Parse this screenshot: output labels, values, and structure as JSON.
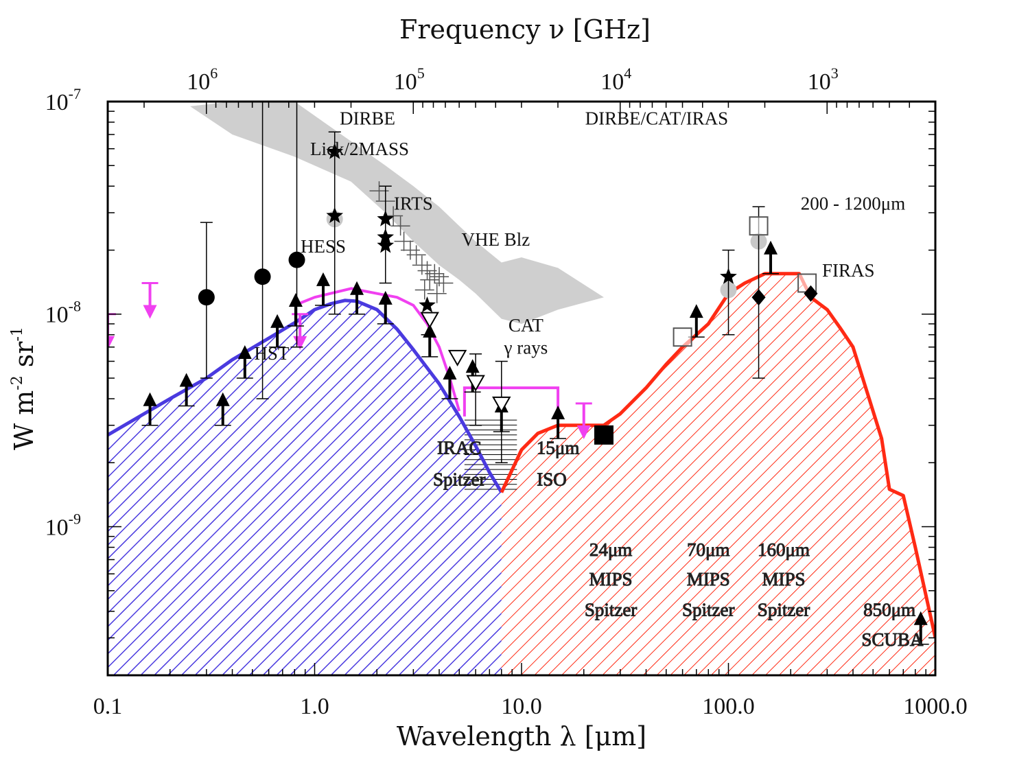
{
  "chart_data": {
    "type": "line",
    "xlabel": "Wavelength λ [μm]",
    "x2label": "Frequency ν [GHz]",
    "ylabel": "W m",
    "ylabel_sup1": "-2",
    "ylabel_mid": " sr",
    "ylabel_sup2": "-1",
    "x_scale": "log",
    "y_scale": "log",
    "xlim": [
      0.1,
      1000
    ],
    "ylim": [
      2e-10,
      1e-07
    ],
    "x_ticks": [
      {
        "value": 0.1,
        "label": "0.1"
      },
      {
        "value": 1,
        "label": "1.0"
      },
      {
        "value": 10,
        "label": "10.0"
      },
      {
        "value": 100,
        "label": "100.0"
      },
      {
        "value": 1000,
        "label": "1000.0"
      }
    ],
    "y_ticks": [
      {
        "value": 1e-09,
        "base": "10",
        "exp": "-9"
      },
      {
        "value": 1e-08,
        "base": "10",
        "exp": "-8"
      },
      {
        "value": 1e-07,
        "base": "10",
        "exp": "-7"
      }
    ],
    "top_ticks": [
      {
        "freq_ghz": 1000000,
        "base": "10",
        "exp": "6"
      },
      {
        "freq_ghz": 100000,
        "base": "10",
        "exp": "5"
      },
      {
        "freq_ghz": 10000,
        "base": "10",
        "exp": "4"
      },
      {
        "freq_ghz": 1000,
        "base": "10",
        "exp": "3"
      }
    ],
    "colors": {
      "cob": "#4a3adf",
      "cib": "#ff2a14",
      "hess": "#f040f0",
      "band": "#cfcfcf",
      "points": "#000000"
    },
    "series": [
      {
        "key": "cob",
        "x": [
          0.1,
          0.15,
          0.2,
          0.3,
          0.4,
          0.6,
          0.8,
          1.0,
          1.2,
          1.4,
          1.6,
          2.0,
          2.5,
          3.0,
          4.0,
          5.0,
          6.0,
          7.0,
          8.0
        ],
        "y": [
          2.7e-09,
          3.4e-09,
          4e-09,
          5e-09,
          6.1e-09,
          7.7e-09,
          9.1e-09,
          1.05e-08,
          1.12e-08,
          1.16e-08,
          1.15e-08,
          1.05e-08,
          8.5e-09,
          6.8e-09,
          4.7e-09,
          3.3e-09,
          2.4e-09,
          1.8e-09,
          1.45e-09
        ]
      },
      {
        "key": "cib",
        "x": [
          8.0,
          10,
          12,
          15,
          20,
          25,
          30,
          40,
          50,
          60,
          70,
          80,
          100,
          120,
          150,
          200,
          220,
          250,
          300,
          350,
          400,
          500,
          550,
          600,
          700,
          800,
          1000
        ],
        "y": [
          1.45e-09,
          2.3e-09,
          2.75e-09,
          3e-09,
          3e-09,
          3e-09,
          3.4e-09,
          4.5e-09,
          5.8e-09,
          7e-09,
          8e-09,
          9e-09,
          1.25e-08,
          1.4e-08,
          1.55e-08,
          1.55e-08,
          1.55e-08,
          1.2e-08,
          1.05e-08,
          8.5e-09,
          7e-09,
          3.5e-09,
          2.6e-09,
          1.5e-09,
          1.4e-09,
          8e-10,
          3e-10
        ]
      },
      {
        "key": "hess",
        "x": [
          0.8,
          1.0,
          1.5,
          2.0,
          2.5,
          3.0,
          3.5,
          4.0,
          4.5,
          5.0
        ],
        "y": [
          1.1e-08,
          1.2e-08,
          1.32e-08,
          1.25e-08,
          1.2e-08,
          1.1e-08,
          9e-09,
          7e-09,
          5e-09,
          3.5e-09
        ]
      }
    ],
    "band": {
      "x_upper": [
        0.25,
        0.4,
        0.8,
        1.5,
        2.2,
        3.0,
        4.0,
        5.0,
        6.0,
        8.0,
        10,
        15,
        25
      ],
      "y_upper": [
        9.5e-08,
        1e-07,
        1e-07,
        6.5e-08,
        5e-08,
        4e-08,
        3.2e-08,
        2.6e-08,
        2.2e-08,
        1.75e-08,
        1.85e-08,
        1.65e-08,
        1.2e-08
      ],
      "x_lower": [
        25,
        15,
        10,
        8.0,
        6.0,
        5.0,
        4.0,
        3.0,
        2.2,
        1.5,
        0.8,
        0.4,
        0.25
      ],
      "y_lower": [
        1.2e-08,
        1.05e-08,
        9e-09,
        9.5e-09,
        1.25e-08,
        1.45e-08,
        1.7e-08,
        2.2e-08,
        3e-08,
        4.2e-08,
        5.5e-08,
        7e-08,
        9.5e-08
      ]
    },
    "hess_box": {
      "x": [
        5.3,
        15
      ],
      "y": [
        3.3e-09,
        4.5e-09
      ]
    },
    "hess_limits": [
      {
        "x": 0.1,
        "y": 1e-08
      },
      {
        "x": 0.16,
        "y": 1.4e-08
      },
      {
        "x": 0.85,
        "y": 1e-08
      },
      {
        "x": 20,
        "y": 3.8e-09
      }
    ],
    "circles": [
      {
        "x": 0.3,
        "y": 1.2e-08,
        "lo": 5e-09,
        "hi": 2.7e-08
      },
      {
        "x": 0.56,
        "y": 1.5e-08,
        "lo": 4e-09,
        "hi": 1e-07
      },
      {
        "x": 0.82,
        "y": 1.8e-08,
        "lo": 7e-09,
        "hi": 1e-07
      }
    ],
    "lower_limits": [
      {
        "x": 0.16,
        "y": 3e-09
      },
      {
        "x": 0.24,
        "y": 3.7e-09
      },
      {
        "x": 0.36,
        "y": 3e-09
      },
      {
        "x": 0.46,
        "y": 5e-09
      },
      {
        "x": 0.66,
        "y": 7e-09
      },
      {
        "x": 0.81,
        "y": 8.8e-09
      },
      {
        "x": 1.1,
        "y": 1.1e-08
      },
      {
        "x": 1.6,
        "y": 1e-08
      },
      {
        "x": 2.2,
        "y": 9e-09
      },
      {
        "x": 3.6,
        "y": 6.3e-09
      },
      {
        "x": 4.5,
        "y": 4e-09
      },
      {
        "x": 5.8,
        "y": 4.3e-09
      },
      {
        "x": 8.0,
        "y": 2.8e-09
      },
      {
        "x": 15,
        "y": 2.6e-09
      },
      {
        "x": 70,
        "y": 7.8e-09
      },
      {
        "x": 160,
        "y": 1.55e-08
      },
      {
        "x": 850,
        "y": 2.8e-10
      }
    ],
    "stars": [
      {
        "x": 1.25,
        "y": 5.8e-08,
        "lo": 1e-08,
        "hi": 7.2e-08
      },
      {
        "x": 1.25,
        "y": 2.9e-08
      },
      {
        "x": 2.2,
        "y": 2.8e-08,
        "lo": 1.4e-08,
        "hi": 4e-08
      },
      {
        "x": 2.2,
        "y": 2.3e-08
      },
      {
        "x": 2.2,
        "y": 2.1e-08
      },
      {
        "x": 3.5,
        "y": 1.1e-08,
        "lo": 8e-09
      },
      {
        "x": 100,
        "y": 1.5e-08,
        "lo": 8e-09,
        "hi": 2e-08
      }
    ],
    "crosses": [
      {
        "x": 2.05,
        "y": 3.8e-08
      },
      {
        "x": 2.2,
        "y": 3.4e-08
      },
      {
        "x": 2.4,
        "y": 2.9e-08
      },
      {
        "x": 2.6,
        "y": 2.6e-08
      },
      {
        "x": 2.7,
        "y": 2.2e-08
      },
      {
        "x": 2.9,
        "y": 2e-08
      },
      {
        "x": 3.1,
        "y": 1.9e-08
      },
      {
        "x": 3.3,
        "y": 1.7e-08
      },
      {
        "x": 3.5,
        "y": 1.6e-08
      },
      {
        "x": 3.6,
        "y": 1.45e-08
      },
      {
        "x": 3.8,
        "y": 1.55e-08
      },
      {
        "x": 4.0,
        "y": 1.5e-08
      },
      {
        "x": 3.4,
        "y": 1.3e-08
      },
      {
        "x": 3.9,
        "y": 1.25e-08
      },
      {
        "x": 4.2,
        "y": 1.4e-08
      }
    ],
    "triangles": [
      {
        "x": 3.6,
        "y": 9.5e-09
      },
      {
        "x": 4.9,
        "y": 6.3e-09
      },
      {
        "x": 6.0,
        "y": 4.8e-09,
        "lo": 3e-09,
        "hi": 6.5e-09
      },
      {
        "x": 8.0,
        "y": 3.8e-09,
        "lo": 2e-09,
        "hi": 6e-09
      }
    ],
    "squares": [
      {
        "x": 25,
        "y": 2.7e-09,
        "filled": true
      },
      {
        "x": 60,
        "y": 7.8e-09,
        "filled": false
      },
      {
        "x": 140,
        "y": 2.6e-08,
        "filled": false,
        "lo": 5e-09,
        "hi": 3.2e-08
      },
      {
        "x": 240,
        "y": 1.4e-08,
        "filled": false
      }
    ],
    "diamonds": [
      {
        "x": 140,
        "y": 1.2e-08
      },
      {
        "x": 250,
        "y": 1.25e-08
      }
    ],
    "grey_dots": [
      {
        "x": 1.25,
        "y": 2.8e-08
      },
      {
        "x": 140,
        "y": 2.2e-08
      },
      {
        "x": 100,
        "y": 1.3e-08
      }
    ],
    "annotations": [
      {
        "text": "DIRBE",
        "x": 1.8,
        "y": 7.8e-08,
        "grey": false
      },
      {
        "text": "Lick/2MASS",
        "x": 1.65,
        "y": 5.6e-08,
        "grey": false
      },
      {
        "text": "IRTS",
        "x": 3.0,
        "y": 3.1e-08,
        "grey": false
      },
      {
        "text": "VHE Blz",
        "x": 7.5,
        "y": 2.1e-08,
        "grey": false
      },
      {
        "text": "HESS",
        "x": 1.1,
        "y": 1.95e-08,
        "grey": false
      },
      {
        "text": "DIRBE/CAT/IRAS",
        "x": 45,
        "y": 7.8e-08,
        "grey": false
      },
      {
        "text": "200 - 1200μm",
        "x": 400,
        "y": 3.1e-08,
        "grey": false
      },
      {
        "text": "FIRAS",
        "x": 380,
        "y": 1.5e-08,
        "grey": false
      },
      {
        "text": "CAT",
        "x": 10.5,
        "y": 8.3e-09,
        "grey": false
      },
      {
        "text": "γ rays",
        "x": 10.5,
        "y": 6.5e-09,
        "grey": false
      },
      {
        "text": "HST",
        "x": 0.62,
        "y": 6.1e-09,
        "grey": false
      },
      {
        "text": "IRAC",
        "x": 5.0,
        "y": 2.2e-09,
        "grey": true
      },
      {
        "text": "Spitzer",
        "x": 5.0,
        "y": 1.56e-09,
        "grey": true
      },
      {
        "text": "15μm",
        "x": 15,
        "y": 2.2e-09,
        "grey": true
      },
      {
        "text": "ISO",
        "x": 14,
        "y": 1.56e-09,
        "grey": true
      },
      {
        "text": "24μm",
        "x": 27,
        "y": 7.3e-10,
        "grey": true
      },
      {
        "text": "MIPS",
        "x": 27,
        "y": 5.3e-10,
        "grey": true
      },
      {
        "text": "Spitzer",
        "x": 27,
        "y": 3.8e-10,
        "grey": true
      },
      {
        "text": "70μm",
        "x": 80,
        "y": 7.3e-10,
        "grey": true
      },
      {
        "text": "MIPS",
        "x": 80,
        "y": 5.3e-10,
        "grey": true
      },
      {
        "text": "Spitzer",
        "x": 80,
        "y": 3.8e-10,
        "grey": true
      },
      {
        "text": "160μm",
        "x": 185,
        "y": 7.3e-10,
        "grey": true
      },
      {
        "text": "MIPS",
        "x": 185,
        "y": 5.3e-10,
        "grey": true
      },
      {
        "text": "Spitzer",
        "x": 185,
        "y": 3.8e-10,
        "grey": true
      },
      {
        "text": "850μm",
        "x": 600,
        "y": 3.8e-10,
        "grey": true
      },
      {
        "text": "SCUBA",
        "x": 620,
        "y": 2.75e-10,
        "grey": true
      }
    ]
  }
}
